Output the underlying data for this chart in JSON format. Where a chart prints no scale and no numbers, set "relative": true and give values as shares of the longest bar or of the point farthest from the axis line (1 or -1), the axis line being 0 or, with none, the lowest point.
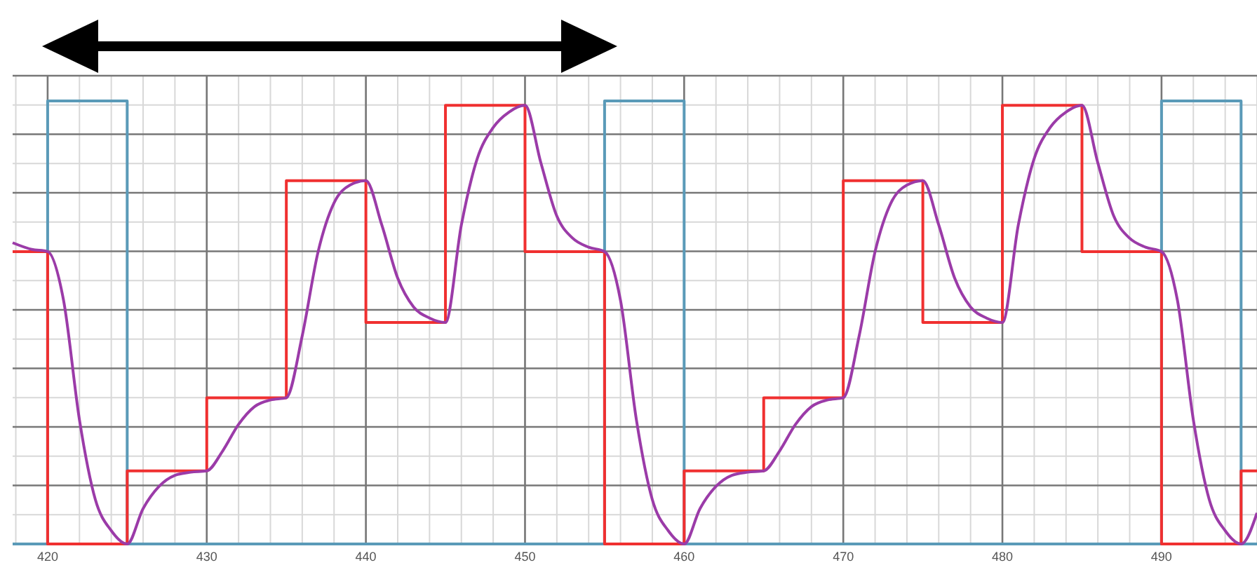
{
  "chart_data": {
    "type": "line",
    "relative": true,
    "xlim": [
      417.8,
      496
    ],
    "xticks": [
      420,
      430,
      440,
      450,
      460,
      470,
      480,
      490
    ],
    "grid": true,
    "line_style": "solid",
    "series": [
      {
        "type": "step",
        "color": "#5a9ab8",
        "x": [
          417.8,
          420,
          425,
          455,
          460,
          490,
          495,
          496
        ],
        "values": [
          0,
          1,
          0,
          1,
          0,
          1,
          0,
          0
        ]
      },
      {
        "type": "step",
        "color": "#f03030",
        "x": [
          417.8,
          420,
          425,
          430,
          435,
          440,
          445,
          450,
          455,
          460,
          465,
          470,
          475,
          480,
          485,
          490,
          495,
          496
        ],
        "values": [
          0.66,
          0,
          0.165,
          0.33,
          0.82,
          0.5,
          0.99,
          0.66,
          0,
          0.165,
          0.33,
          0.82,
          0.5,
          0.99,
          0.66,
          0,
          0.165,
          0.165
        ]
      },
      {
        "color": "#9b3ba8",
        "x": [
          417.8,
          419,
          420,
          421,
          422,
          423,
          424,
          425,
          426,
          427,
          428,
          429,
          430,
          431,
          432,
          433,
          434,
          435,
          436,
          437,
          438,
          439,
          440,
          441,
          442,
          443,
          444,
          445,
          446,
          447,
          448,
          449,
          450,
          451,
          452,
          453,
          454,
          455,
          456,
          457,
          458,
          459,
          460,
          461,
          462,
          463,
          464,
          465,
          466,
          467,
          468,
          469,
          470,
          471,
          472,
          473,
          474,
          475,
          476,
          477,
          478,
          479,
          480,
          481,
          482,
          483,
          484,
          485,
          486,
          487,
          488,
          489,
          490,
          491,
          492,
          493,
          494,
          495,
          496
        ],
        "values": [
          0.68,
          0.665,
          0.66,
          0.55,
          0.28,
          0.1,
          0.03,
          0,
          0.08,
          0.13,
          0.155,
          0.162,
          0.165,
          0.21,
          0.27,
          0.31,
          0.325,
          0.33,
          0.47,
          0.66,
          0.77,
          0.81,
          0.82,
          0.72,
          0.6,
          0.535,
          0.51,
          0.5,
          0.72,
          0.87,
          0.94,
          0.975,
          0.99,
          0.86,
          0.74,
          0.69,
          0.67,
          0.66,
          0.55,
          0.28,
          0.1,
          0.03,
          0,
          0.08,
          0.13,
          0.155,
          0.162,
          0.165,
          0.21,
          0.27,
          0.31,
          0.325,
          0.33,
          0.47,
          0.66,
          0.77,
          0.81,
          0.82,
          0.72,
          0.6,
          0.535,
          0.51,
          0.5,
          0.72,
          0.87,
          0.94,
          0.975,
          0.99,
          0.86,
          0.74,
          0.69,
          0.67,
          0.66,
          0.55,
          0.28,
          0.1,
          0.03,
          0,
          0.07
        ]
      }
    ]
  }
}
